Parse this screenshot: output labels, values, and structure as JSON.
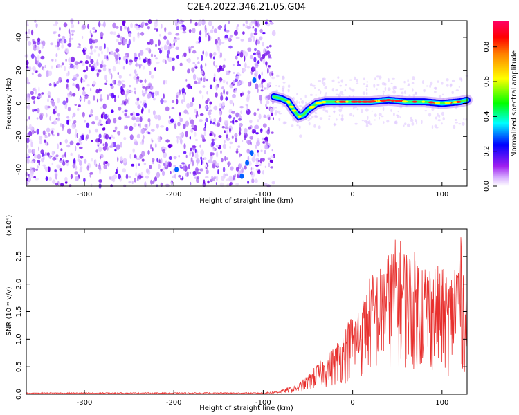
{
  "figure": {
    "title": "C2E4.2022.346.21.05.G04"
  },
  "chart_data": [
    {
      "type": "heatmap",
      "title": "C2E4.2022.346.21.05.G04",
      "xlabel": "Height of straight line (km)",
      "ylabel": "Frequency (Hz)",
      "xlim": [
        -365,
        128
      ],
      "ylim": [
        -50,
        50
      ],
      "xticks": [
        -300,
        -200,
        -100,
        0,
        100
      ],
      "yticks": [
        -40,
        -20,
        0,
        20,
        40
      ],
      "noise_region_x": [
        -365,
        -88
      ],
      "signal_trace": {
        "x": [
          -88,
          -80,
          -72,
          -66,
          -60,
          -55,
          -50,
          -45,
          -40,
          -30,
          -20,
          -10,
          0,
          20,
          40,
          60,
          80,
          100,
          120,
          128
        ],
        "y": [
          4,
          3,
          1,
          -4,
          -8,
          -7,
          -4,
          -2,
          0,
          1,
          1,
          1,
          1,
          1,
          2,
          1,
          1,
          0,
          1,
          2
        ]
      },
      "colorbar": {
        "label": "Normalized spectral amplitude",
        "range": [
          0,
          0.95
        ],
        "ticks": [
          "0.0",
          "0.2",
          "0.4",
          "0.6",
          "0.8"
        ],
        "colors": [
          "#ffffff",
          "#a020f0",
          "#0000ff",
          "#00ffff",
          "#00ff00",
          "#ffff00",
          "#ff0000",
          "#ff0066"
        ]
      },
      "grid": false
    },
    {
      "type": "line",
      "xlabel": "Height of straight line (km)",
      "ylabel": "SNR (10 * v/v)",
      "ylabel_multiplier": "(x10⁴)",
      "xlim": [
        -365,
        128
      ],
      "ylim": [
        0,
        3.0
      ],
      "xticks": [
        -300,
        -200,
        -100,
        0,
        100
      ],
      "yticks": [
        "0.0",
        "0.5",
        "1.0",
        "1.5",
        "2.0",
        "2.5"
      ],
      "color": "#e8302e",
      "envelope": {
        "x": [
          -365,
          -100,
          -80,
          -60,
          -50,
          -40,
          -30,
          -20,
          -10,
          0,
          10,
          20,
          30,
          40,
          50,
          60,
          80,
          100,
          110,
          120,
          128
        ],
        "y": [
          0.02,
          0.03,
          0.08,
          0.2,
          0.35,
          0.55,
          0.7,
          0.9,
          1.2,
          1.5,
          1.7,
          2.2,
          2.3,
          2.6,
          2.9,
          2.7,
          2.5,
          2.3,
          2.2,
          3.0,
          1.9
        ]
      },
      "grid": false
    }
  ]
}
